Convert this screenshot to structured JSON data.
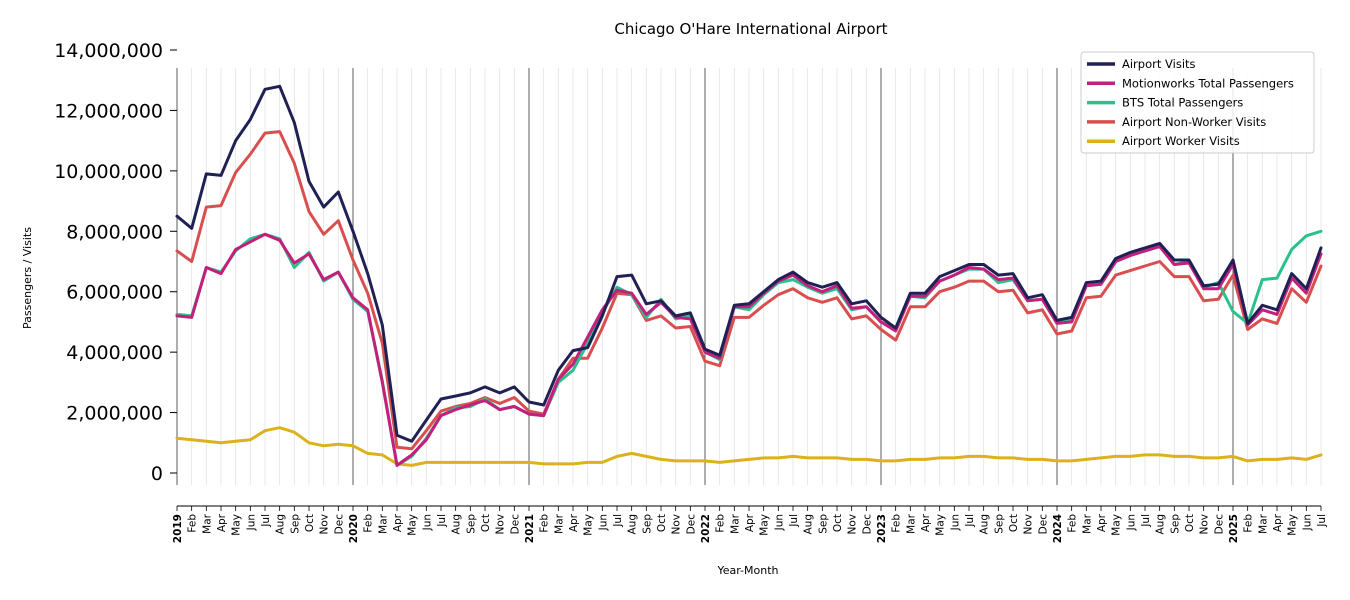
{
  "chart_data": {
    "type": "line",
    "title": "Chicago O'Hare International Airport",
    "xlabel": "Year-Month",
    "ylabel": "Passengers / Visits",
    "ylim": [
      -1000000,
      14000000
    ],
    "y_ticks": [
      0,
      2000000,
      4000000,
      6000000,
      8000000,
      10000000,
      12000000,
      14000000
    ],
    "y_tick_labels": [
      "0",
      "2,000,000",
      "4,000,000",
      "6,000,000",
      "8,000,000",
      "10,000,000",
      "12,000,000",
      "14,000,000"
    ],
    "grid": "vertical monthly gridlines, year separators",
    "legend_position": "top-right",
    "x": [
      "2019-01",
      "2019-02",
      "2019-03",
      "2019-04",
      "2019-05",
      "2019-06",
      "2019-07",
      "2019-08",
      "2019-09",
      "2019-10",
      "2019-11",
      "2019-12",
      "2020-01",
      "2020-02",
      "2020-03",
      "2020-04",
      "2020-05",
      "2020-06",
      "2020-07",
      "2020-08",
      "2020-09",
      "2020-10",
      "2020-11",
      "2020-12",
      "2021-01",
      "2021-02",
      "2021-03",
      "2021-04",
      "2021-05",
      "2021-06",
      "2021-07",
      "2021-08",
      "2021-09",
      "2021-10",
      "2021-11",
      "2021-12",
      "2022-01",
      "2022-02",
      "2022-03",
      "2022-04",
      "2022-05",
      "2022-06",
      "2022-07",
      "2022-08",
      "2022-09",
      "2022-10",
      "2022-11",
      "2022-12",
      "2023-01",
      "2023-02",
      "2023-03",
      "2023-04",
      "2023-05",
      "2023-06",
      "2023-07",
      "2023-08",
      "2023-09",
      "2023-10",
      "2023-11",
      "2023-12",
      "2024-01",
      "2024-02",
      "2024-03",
      "2024-04",
      "2024-05",
      "2024-06",
      "2024-07",
      "2024-08",
      "2024-09",
      "2024-10",
      "2024-11",
      "2024-12",
      "2025-01",
      "2025-02",
      "2025-03",
      "2025-04",
      "2025-05",
      "2025-06",
      "2025-07"
    ],
    "x_tick_labels": [
      "2019",
      "Feb",
      "Mar",
      "Apr",
      "May",
      "Jun",
      "Jul",
      "Aug",
      "Sep",
      "Oct",
      "Nov",
      "Dec",
      "2020",
      "Feb",
      "Mar",
      "Apr",
      "May",
      "Jun",
      "Jul",
      "Aug",
      "Sep",
      "Oct",
      "Nov",
      "Dec",
      "2021",
      "Feb",
      "Mar",
      "Apr",
      "May",
      "Jun",
      "Jul",
      "Aug",
      "Sep",
      "Oct",
      "Nov",
      "Dec",
      "2022",
      "Feb",
      "Mar",
      "Apr",
      "May",
      "Jun",
      "Jul",
      "Aug",
      "Sep",
      "Oct",
      "Nov",
      "Dec",
      "2023",
      "Feb",
      "Mar",
      "Apr",
      "May",
      "Jun",
      "Jul",
      "Aug",
      "Sep",
      "Oct",
      "Nov",
      "Dec",
      "2024",
      "Feb",
      "Mar",
      "Apr",
      "May",
      "Jun",
      "Jul",
      "Aug",
      "Sep",
      "Oct",
      "Nov",
      "Dec",
      "2025",
      "Feb",
      "Mar",
      "Apr",
      "May",
      "Jun",
      "Jul"
    ],
    "series": [
      {
        "name": "Airport Visits",
        "color": "#1f2154",
        "values": [
          8500000,
          8100000,
          9900000,
          9850000,
          11000000,
          11700000,
          12700000,
          12800000,
          11600000,
          9650000,
          8800000,
          9300000,
          8000000,
          6600000,
          4900000,
          1250000,
          1050000,
          1750000,
          2450000,
          2550000,
          2650000,
          2850000,
          2650000,
          2850000,
          2350000,
          2250000,
          3400000,
          4050000,
          4150000,
          5200000,
          6500000,
          6550000,
          5600000,
          5700000,
          5200000,
          5300000,
          4100000,
          3900000,
          5550000,
          5600000,
          6000000,
          6400000,
          6650000,
          6300000,
          6150000,
          6300000,
          5600000,
          5700000,
          5150000,
          4800000,
          5950000,
          5950000,
          6500000,
          6700000,
          6900000,
          6900000,
          6550000,
          6600000,
          5800000,
          5900000,
          5050000,
          5150000,
          6300000,
          6350000,
          7100000,
          7300000,
          7450000,
          7600000,
          7050000,
          7050000,
          6200000,
          6250000,
          7050000,
          4950000,
          5550000,
          5400000,
          6600000,
          6100000,
          7450000
        ]
      },
      {
        "name": "Motionworks Total Passengers",
        "color": "#c41f7d",
        "values": [
          5200000,
          5150000,
          6800000,
          6600000,
          7400000,
          7650000,
          7900000,
          7700000,
          6950000,
          7250000,
          6400000,
          6650000,
          5800000,
          5400000,
          3000000,
          250000,
          600000,
          1100000,
          1900000,
          2100000,
          2250000,
          2400000,
          2100000,
          2200000,
          1950000,
          1900000,
          3100000,
          3600000,
          4500000,
          5400000,
          6050000,
          5950000,
          5250000,
          5650000,
          5150000,
          5100000,
          4000000,
          3800000,
          5500000,
          5500000,
          5950000,
          6350000,
          6550000,
          6200000,
          6000000,
          6200000,
          5450000,
          5500000,
          5000000,
          4700000,
          5850000,
          5850000,
          6350000,
          6550000,
          6800000,
          6750000,
          6400000,
          6450000,
          5700000,
          5750000,
          4950000,
          5000000,
          6200000,
          6250000,
          7000000,
          7200000,
          7350000,
          7500000,
          6900000,
          6950000,
          6100000,
          6100000,
          6900000,
          4900000,
          5400000,
          5250000,
          6450000,
          5950000,
          7250000
        ]
      },
      {
        "name": "BTS Total Passengers",
        "color": "#2ac18b",
        "values": [
          5250000,
          5200000,
          6800000,
          6650000,
          7350000,
          7750000,
          7900000,
          7750000,
          6800000,
          7300000,
          6350000,
          6650000,
          5750000,
          5350000,
          3050000,
          250000,
          550000,
          1150000,
          1900000,
          2150000,
          2200000,
          2450000,
          2100000,
          2200000,
          1950000,
          1900000,
          3000000,
          3400000,
          4300000,
          5300000,
          6150000,
          5900000,
          5150000,
          5750000,
          5100000,
          5200000,
          4000000,
          3750000,
          5500000,
          5400000,
          5900000,
          6300000,
          6400000,
          6150000,
          5950000,
          6100000,
          5400000,
          5500000,
          5000000,
          4750000,
          5850000,
          5800000,
          6350000,
          6550000,
          6750000,
          6750000,
          6300000,
          6400000,
          5700000,
          5750000,
          4950000,
          5050000,
          6200000,
          6250000,
          7000000,
          7200000,
          7350000,
          7500000,
          6900000,
          7000000,
          6150000,
          6300000,
          5350000,
          4950000,
          6400000,
          6450000,
          7400000,
          7850000,
          8000000
        ]
      },
      {
        "name": "Airport Non-Worker Visits",
        "color": "#d94f4f",
        "values": [
          7350000,
          7000000,
          8800000,
          8850000,
          9950000,
          10550000,
          11250000,
          11300000,
          10250000,
          8650000,
          7900000,
          8350000,
          7050000,
          5950000,
          4300000,
          850000,
          800000,
          1400000,
          2050000,
          2200000,
          2300000,
          2500000,
          2300000,
          2500000,
          2050000,
          1950000,
          3100000,
          3800000,
          3800000,
          4800000,
          5950000,
          5900000,
          5050000,
          5200000,
          4800000,
          4850000,
          3700000,
          3550000,
          5150000,
          5150000,
          5550000,
          5900000,
          6100000,
          5800000,
          5650000,
          5800000,
          5100000,
          5200000,
          4750000,
          4400000,
          5500000,
          5500000,
          6000000,
          6150000,
          6350000,
          6350000,
          6000000,
          6050000,
          5300000,
          5400000,
          4600000,
          4700000,
          5800000,
          5850000,
          6550000,
          6700000,
          6850000,
          7000000,
          6500000,
          6500000,
          5700000,
          5750000,
          6550000,
          4750000,
          5100000,
          4950000,
          6100000,
          5650000,
          6850000
        ]
      },
      {
        "name": "Airport Worker Visits",
        "color": "#dcb21a",
        "values": [
          1150000,
          1100000,
          1050000,
          1000000,
          1050000,
          1100000,
          1400000,
          1500000,
          1350000,
          1000000,
          900000,
          950000,
          900000,
          650000,
          600000,
          300000,
          250000,
          350000,
          350000,
          350000,
          350000,
          350000,
          350000,
          350000,
          350000,
          300000,
          300000,
          300000,
          350000,
          350000,
          550000,
          650000,
          550000,
          450000,
          400000,
          400000,
          400000,
          350000,
          400000,
          450000,
          500000,
          500000,
          550000,
          500000,
          500000,
          500000,
          450000,
          450000,
          400000,
          400000,
          450000,
          450000,
          500000,
          500000,
          550000,
          550000,
          500000,
          500000,
          450000,
          450000,
          400000,
          400000,
          450000,
          500000,
          550000,
          550000,
          600000,
          600000,
          550000,
          550000,
          500000,
          500000,
          550000,
          400000,
          450000,
          450000,
          500000,
          450000,
          600000
        ]
      }
    ]
  }
}
